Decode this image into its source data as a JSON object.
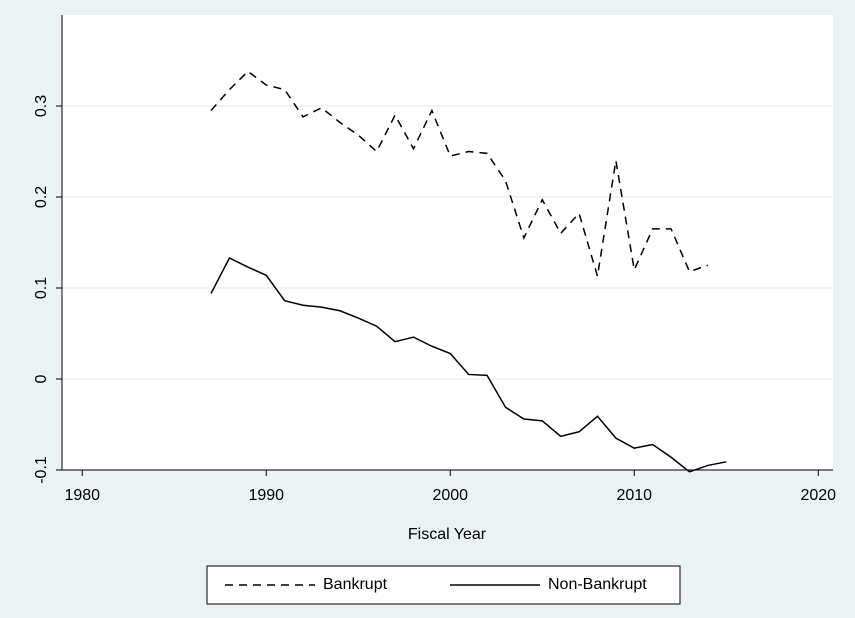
{
  "chart_data": {
    "type": "line",
    "x_label": "Fiscal Year",
    "x": [
      1987,
      1988,
      1989,
      1990,
      1991,
      1992,
      1993,
      1994,
      1995,
      1996,
      1997,
      1998,
      1999,
      2000,
      2001,
      2002,
      2003,
      2004,
      2005,
      2006,
      2007,
      2008,
      2009,
      2010,
      2011,
      2012,
      2013,
      2014,
      2015
    ],
    "series": [
      {
        "name": "Bankrupt",
        "color": "#000000",
        "dash": "8,6",
        "values": [
          0.295,
          0.318,
          0.338,
          0.323,
          0.318,
          0.288,
          0.298,
          0.282,
          0.268,
          0.25,
          0.29,
          0.253,
          0.295,
          0.245,
          0.25,
          0.248,
          0.218,
          0.155,
          0.197,
          0.16,
          0.182,
          0.113,
          0.24,
          0.12,
          0.165,
          0.165,
          0.118,
          0.125,
          null
        ]
      },
      {
        "name": "Non-Bankrupt",
        "color": "#000000",
        "dash": "none",
        "values": [
          0.094,
          0.133,
          0.123,
          0.114,
          0.086,
          0.081,
          0.079,
          0.075,
          0.067,
          0.058,
          0.041,
          0.046,
          0.036,
          0.028,
          0.005,
          0.004,
          -0.031,
          -0.044,
          -0.046,
          -0.063,
          -0.058,
          -0.041,
          -0.065,
          -0.076,
          -0.072,
          -0.086,
          -0.102,
          -0.095,
          -0.091
        ]
      }
    ],
    "xlim": [
      1978.9,
      2020.8
    ],
    "xticks": [
      1980,
      1990,
      2000,
      2010,
      2020
    ],
    "ylim": [
      -0.1,
      0.4
    ],
    "yticks": [
      -0.1,
      0,
      0.1,
      0.2,
      0.3
    ],
    "grid": true,
    "legend": "bottom"
  }
}
